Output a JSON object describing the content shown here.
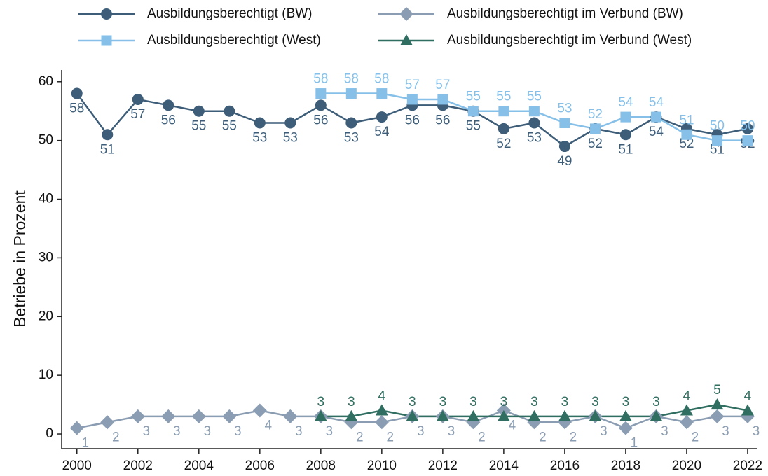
{
  "chart_data": {
    "type": "line",
    "y_label": "Betriebe in Prozent",
    "x": [
      2000,
      2001,
      2002,
      2003,
      2004,
      2005,
      2006,
      2007,
      2008,
      2009,
      2010,
      2011,
      2012,
      2013,
      2014,
      2015,
      2016,
      2017,
      2018,
      2019,
      2020,
      2021,
      2022
    ],
    "xlim": [
      1999.5,
      2022.3
    ],
    "xticks": [
      2000,
      2002,
      2004,
      2006,
      2008,
      2010,
      2012,
      2014,
      2016,
      2018,
      2020,
      2022
    ],
    "ylim": [
      -2.5,
      62
    ],
    "yticks": [
      0,
      10,
      20,
      30,
      40,
      50,
      60
    ],
    "grid": false,
    "series": [
      {
        "name": "Ausbildungsberechtigt (BW)",
        "color": "#3d5d78",
        "marker": "circle",
        "label_pos": "below",
        "values": [
          58,
          51,
          57,
          56,
          55,
          55,
          53,
          53,
          56,
          53,
          54,
          56,
          56,
          55,
          52,
          53,
          49,
          52,
          51,
          54,
          52,
          51,
          52
        ]
      },
      {
        "name": "Ausbildungsberechtigt im Verbund (BW)",
        "color": "#8b9db2",
        "marker": "diamond",
        "label_pos": "below",
        "values": [
          1,
          2,
          3,
          3,
          3,
          3,
          4,
          3,
          3,
          2,
          2,
          3,
          3,
          2,
          4,
          2,
          2,
          3,
          1,
          3,
          2,
          3,
          3
        ]
      },
      {
        "name": "Ausbildungsberechtigt (West)",
        "color": "#86c0e8",
        "marker": "square",
        "label_pos": "above",
        "values": [
          null,
          null,
          null,
          null,
          null,
          null,
          null,
          null,
          58,
          58,
          58,
          57,
          57,
          55,
          55,
          55,
          53,
          52,
          54,
          54,
          51,
          50,
          50
        ]
      },
      {
        "name": "Ausbildungsberechtigt im Verbund (West)",
        "color": "#2f6e60",
        "marker": "triangle",
        "label_pos": "above",
        "values": [
          null,
          null,
          null,
          null,
          null,
          null,
          null,
          null,
          3,
          3,
          4,
          3,
          3,
          3,
          3,
          3,
          3,
          3,
          3,
          3,
          4,
          5,
          4
        ]
      }
    ]
  }
}
